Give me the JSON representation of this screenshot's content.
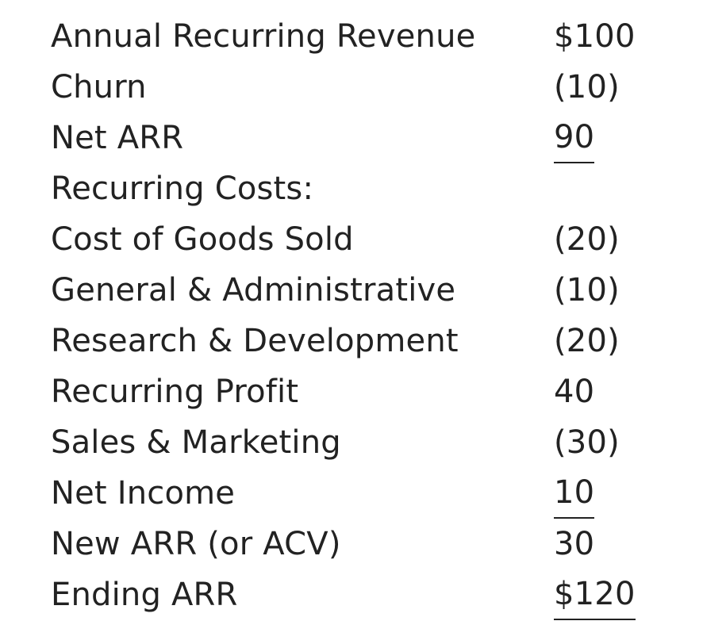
{
  "rows": [
    {
      "label": "Annual Recurring Revenue",
      "value": "$100",
      "underline": false
    },
    {
      "label": "Churn",
      "value": "(10)",
      "underline": false
    },
    {
      "label": "Net ARR",
      "value": "90",
      "underline": true
    },
    {
      "label": "Recurring Costs:",
      "value": "",
      "underline": false
    },
    {
      "label": "Cost of Goods Sold",
      "value": "(20)",
      "underline": false
    },
    {
      "label": "General & Administrative",
      "value": "(10)",
      "underline": false
    },
    {
      "label": "Research & Development",
      "value": "(20)",
      "underline": false
    },
    {
      "label": "Recurring Profit",
      "value": "40",
      "underline": false
    },
    {
      "label": "Sales & Marketing",
      "value": "(30)",
      "underline": false
    },
    {
      "label": "Net Income",
      "value": "10",
      "underline": true
    },
    {
      "label": "New ARR (or ACV)",
      "value": "30",
      "underline": false
    },
    {
      "label": "Ending ARR",
      "value": "$120",
      "underline": true
    }
  ]
}
